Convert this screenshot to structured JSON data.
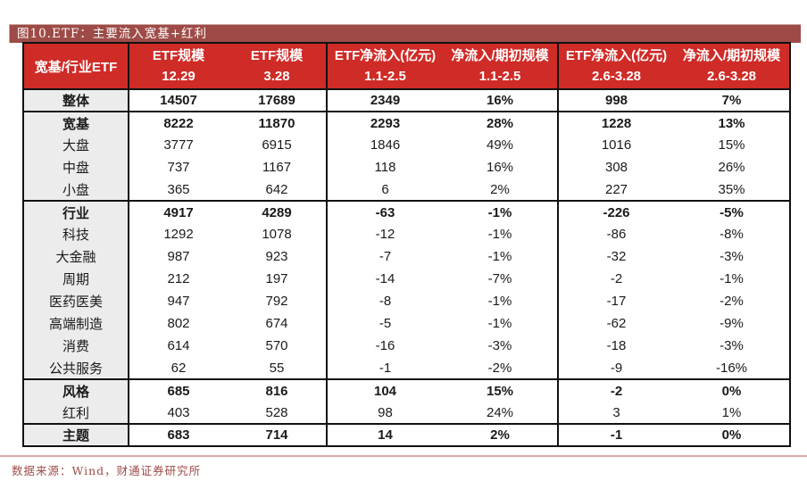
{
  "figure": {
    "title": "图10.ETF：主要流入宽基+红利"
  },
  "source_note": "数据来源：Wind，财通证券研究所",
  "colors": {
    "title_bar_bg": "#9e4b47",
    "header_bg": "#cf2b27",
    "row_label_bg": "#ececec",
    "positive_red": "#f32121",
    "negative_green": "#1cab50",
    "border_black": "#111111",
    "rule_pink": "#d9aba5"
  },
  "chart_data": {
    "type": "table",
    "title": "图10.ETF：主要流入宽基+红利",
    "corner_header": "宽基/行业ETF",
    "columns": [
      {
        "label": "ETF规模",
        "period": "12.29"
      },
      {
        "label": "ETF规模",
        "period": "3.28"
      },
      {
        "label": "ETF净流入(亿元)",
        "period": "1.1-2.5"
      },
      {
        "label": "净流入/期初规模",
        "period": "1.1-2.5"
      },
      {
        "label": "ETF净流入(亿元)",
        "period": "2.6-3.28"
      },
      {
        "label": "净流入/期初规模",
        "period": "2.6-3.28"
      }
    ],
    "rows": [
      {
        "label": "整体",
        "bold": true,
        "values": [
          "14507",
          "17689",
          "2349",
          "16%",
          "998",
          "7%"
        ],
        "colors": [
          "black",
          "black",
          "black",
          "red",
          "black",
          "red"
        ]
      },
      {
        "label": "宽基",
        "bold": true,
        "section_start": true,
        "values": [
          "8222",
          "11870",
          "2293",
          "28%",
          "1228",
          "13%"
        ],
        "colors": [
          "black",
          "black",
          "black",
          "red",
          "black",
          "red"
        ]
      },
      {
        "label": "大盘",
        "values": [
          "3777",
          "6915",
          "1846",
          "49%",
          "1016",
          "15%"
        ],
        "colors": [
          "black",
          "black",
          "black",
          "red",
          "black",
          "red"
        ]
      },
      {
        "label": "中盘",
        "values": [
          "737",
          "1167",
          "118",
          "16%",
          "308",
          "26%"
        ],
        "colors": [
          "black",
          "black",
          "black",
          "red",
          "black",
          "red"
        ]
      },
      {
        "label": "小盘",
        "values": [
          "365",
          "642",
          "6",
          "2%",
          "227",
          "35%"
        ],
        "colors": [
          "black",
          "black",
          "black",
          "red",
          "black",
          "red"
        ]
      },
      {
        "label": "行业",
        "bold": true,
        "section_start": true,
        "values": [
          "4917",
          "4289",
          "-63",
          "-1%",
          "-226",
          "-5%"
        ],
        "colors": [
          "black",
          "black",
          "black",
          "green",
          "black",
          "green"
        ]
      },
      {
        "label": "科技",
        "values": [
          "1292",
          "1078",
          "-12",
          "-1%",
          "-86",
          "-8%"
        ],
        "colors": [
          "black",
          "black",
          "black",
          "green",
          "black",
          "green"
        ]
      },
      {
        "label": "大金融",
        "values": [
          "987",
          "923",
          "-7",
          "-1%",
          "-32",
          "-3%"
        ],
        "colors": [
          "black",
          "black",
          "black",
          "green",
          "black",
          "green"
        ]
      },
      {
        "label": "周期",
        "values": [
          "212",
          "197",
          "-14",
          "-7%",
          "-2",
          "-1%"
        ],
        "colors": [
          "black",
          "black",
          "black",
          "green",
          "black",
          "green"
        ]
      },
      {
        "label": "医药医美",
        "values": [
          "947",
          "792",
          "-8",
          "-1%",
          "-17",
          "-2%"
        ],
        "colors": [
          "black",
          "black",
          "black",
          "green",
          "black",
          "green"
        ]
      },
      {
        "label": "高端制造",
        "values": [
          "802",
          "674",
          "-5",
          "-1%",
          "-62",
          "-9%"
        ],
        "colors": [
          "black",
          "black",
          "black",
          "green",
          "black",
          "green"
        ]
      },
      {
        "label": "消费",
        "values": [
          "614",
          "570",
          "-16",
          "-3%",
          "-18",
          "-3%"
        ],
        "colors": [
          "black",
          "black",
          "black",
          "green",
          "black",
          "green"
        ]
      },
      {
        "label": "公共服务",
        "values": [
          "62",
          "55",
          "-1",
          "-2%",
          "-9",
          "-16%"
        ],
        "colors": [
          "black",
          "black",
          "black",
          "green",
          "black",
          "green"
        ]
      },
      {
        "label": "风格",
        "bold": true,
        "section_start": true,
        "values": [
          "685",
          "816",
          "104",
          "15%",
          "-2",
          "0%"
        ],
        "colors": [
          "black",
          "black",
          "black",
          "red",
          "black",
          "green"
        ]
      },
      {
        "label": "红利",
        "values": [
          "403",
          "528",
          "98",
          "24%",
          "3",
          "1%"
        ],
        "colors": [
          "black",
          "black",
          "black",
          "red",
          "black",
          "red"
        ]
      },
      {
        "label": "主题",
        "bold": true,
        "section_start": true,
        "values": [
          "683",
          "714",
          "14",
          "2%",
          "-1",
          "0%"
        ],
        "colors": [
          "black",
          "black",
          "black",
          "red",
          "black",
          "green"
        ]
      }
    ]
  }
}
